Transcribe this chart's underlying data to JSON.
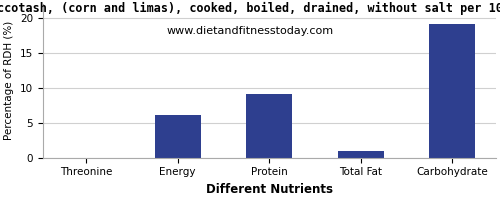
{
  "title": "ccotash, (corn and limas), cooked, boiled, drained, without salt per 10",
  "subtitle": "www.dietandfitnesstoday.com",
  "categories": [
    "Threonine",
    "Energy",
    "Protein",
    "Total Fat",
    "Carbohydrate"
  ],
  "values": [
    0,
    6.1,
    9.1,
    1.0,
    19.1
  ],
  "bar_color": "#2e3f8f",
  "xlabel": "Different Nutrients",
  "ylabel": "Percentage of RDH (%)",
  "ylim": [
    0,
    22
  ],
  "yticks": [
    0,
    5,
    10,
    15,
    20
  ],
  "title_fontsize": 8.5,
  "subtitle_fontsize": 8,
  "xlabel_fontsize": 8.5,
  "ylabel_fontsize": 7.5,
  "tick_fontsize": 7.5,
  "grid_color": "#d0d0d0",
  "background_color": "#ffffff"
}
